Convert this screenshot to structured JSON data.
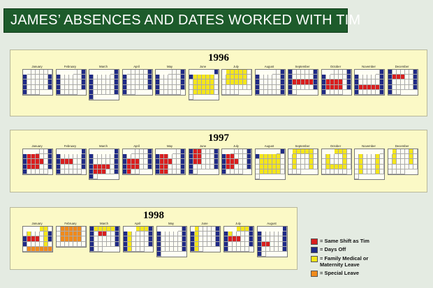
{
  "header": {
    "title": "JAMES’ ABSENCES AND DATES WORKED WITH TIM"
  },
  "colors": {
    "same_shift": "#d91e1e",
    "days_off": "#1f2a86",
    "fmla": "#f5e61a",
    "special": "#f08a1c",
    "work": "#fffff4"
  },
  "legend": [
    {
      "key": "same_shift",
      "label": "= Same Shift as Tim"
    },
    {
      "key": "days_off",
      "label": "= Days Off"
    },
    {
      "key": "fmla",
      "label": "= Family Medical or",
      "label2": "Maternity Leave"
    },
    {
      "key": "special",
      "label": "= Special Leave"
    }
  ],
  "chart_data": {
    "type": "table",
    "years": [
      {
        "year": "1996",
        "months": [
          {
            "name": "January",
            "start": 1,
            "days": 31,
            "off": [
              7,
              13,
              14,
              20,
              21,
              27,
              28
            ],
            "same": [],
            "fmla": [],
            "special": []
          },
          {
            "name": "February",
            "start": 4,
            "days": 29,
            "off": [
              3,
              4,
              10,
              11,
              17,
              18,
              24,
              25
            ],
            "same": [],
            "fmla": [],
            "special": []
          },
          {
            "name": "March",
            "start": 5,
            "days": 31,
            "off": [
              2,
              3,
              9,
              10,
              16,
              17,
              23,
              24,
              30,
              31
            ],
            "same": [],
            "fmla": [],
            "special": []
          },
          {
            "name": "April",
            "start": 1,
            "days": 30,
            "off": [
              6,
              7,
              13,
              14,
              20,
              21,
              27,
              28
            ],
            "same": [],
            "fmla": [],
            "special": []
          },
          {
            "name": "May",
            "start": 3,
            "days": 31,
            "off": [
              4,
              5,
              11,
              12,
              18,
              19,
              25,
              26
            ],
            "same": [],
            "fmla": [],
            "special": []
          },
          {
            "name": "June",
            "start": 6,
            "days": 30,
            "off": [
              1,
              2
            ],
            "same": [],
            "fmla": [
              3,
              4,
              5,
              6,
              7,
              10,
              11,
              12,
              13,
              14,
              17,
              18,
              19,
              20,
              21,
              24,
              25,
              26,
              27,
              28
            ],
            "special": []
          },
          {
            "name": "July",
            "start": 1,
            "days": 31,
            "off": [],
            "same": [],
            "fmla": [
              1,
              2,
              3,
              4,
              5,
              8,
              9,
              10,
              11,
              12,
              15,
              16,
              17,
              18,
              19
            ],
            "special": []
          },
          {
            "name": "August",
            "start": 4,
            "days": 31,
            "off": [
              3,
              4,
              10,
              11,
              17,
              18,
              24,
              25,
              31
            ],
            "same": [],
            "fmla": [],
            "special": []
          },
          {
            "name": "September",
            "start": 0,
            "days": 30,
            "off": [
              1,
              7,
              8,
              14,
              15,
              21,
              22,
              28,
              29
            ],
            "same": [
              16,
              17,
              18,
              19,
              20
            ],
            "fmla": [],
            "special": []
          },
          {
            "name": "October",
            "start": 2,
            "days": 31,
            "off": [
              5,
              6,
              12,
              13,
              19,
              20,
              26,
              27
            ],
            "same": [
              14,
              15,
              16,
              17,
              21,
              22,
              23,
              24
            ],
            "fmla": [],
            "special": []
          },
          {
            "name": "November",
            "start": 5,
            "days": 30,
            "off": [
              2,
              3,
              9,
              10,
              16,
              17,
              23,
              24,
              30
            ],
            "same": [
              18,
              19,
              20,
              21,
              22
            ],
            "fmla": [],
            "special": []
          },
          {
            "name": "December",
            "start": 0,
            "days": 31,
            "off": [
              1,
              7,
              8,
              14,
              15,
              21,
              22,
              28,
              29
            ],
            "same": [
              9,
              10,
              11
            ],
            "fmla": [],
            "special": []
          }
        ]
      },
      {
        "year": "1997",
        "months": [
          {
            "name": "January",
            "start": 3,
            "days": 31,
            "off": [
              4,
              5,
              11,
              12,
              18,
              19,
              25,
              26
            ],
            "same": [
              6,
              7,
              8,
              13,
              14,
              15,
              16,
              20,
              21,
              22
            ],
            "fmla": [],
            "special": []
          },
          {
            "name": "February",
            "start": 6,
            "days": 28,
            "off": [
              1,
              2,
              8,
              9,
              15,
              16,
              22,
              23
            ],
            "same": [
              10,
              11,
              12
            ],
            "fmla": [],
            "special": []
          },
          {
            "name": "March",
            "start": 6,
            "days": 31,
            "off": [
              1,
              2,
              8,
              9,
              15,
              16,
              22,
              23,
              29,
              30
            ],
            "same": [
              17,
              18,
              19,
              20,
              24,
              25,
              26
            ],
            "fmla": [],
            "special": []
          },
          {
            "name": "April",
            "start": 2,
            "days": 30,
            "off": [
              5,
              6,
              12,
              13,
              19,
              20,
              26,
              27
            ],
            "same": [
              14,
              15,
              16,
              21,
              22,
              23,
              28
            ],
            "fmla": [],
            "special": []
          },
          {
            "name": "May",
            "start": 4,
            "days": 31,
            "off": [
              3,
              4,
              10,
              11,
              17,
              18,
              24,
              25,
              31
            ],
            "same": [
              5,
              6,
              12,
              13,
              14,
              19,
              20,
              26,
              27
            ],
            "fmla": [],
            "special": []
          },
          {
            "name": "June",
            "start": 0,
            "days": 30,
            "off": [
              1,
              7,
              8,
              14,
              15,
              21,
              22,
              28,
              29
            ],
            "same": [
              2,
              3,
              9,
              10,
              16,
              17
            ],
            "fmla": [],
            "special": []
          },
          {
            "name": "July",
            "start": 2,
            "days": 31,
            "off": [
              5,
              6,
              12,
              13,
              19,
              20,
              26,
              27
            ],
            "same": [
              7,
              8,
              14,
              15,
              16,
              21,
              22
            ],
            "fmla": [],
            "special": []
          },
          {
            "name": "August",
            "start": 5,
            "days": 31,
            "off": [
              2,
              3
            ],
            "same": [],
            "fmla": [
              4,
              5,
              6,
              7,
              8,
              11,
              12,
              13,
              14,
              15,
              18,
              19,
              20,
              21,
              22,
              25,
              26,
              27,
              28,
              29
            ],
            "special": []
          },
          {
            "name": "September",
            "start": 1,
            "days": 30,
            "off": [],
            "same": [],
            "fmla": [
              1,
              2,
              3,
              4,
              5,
              8,
              12,
              15,
              19,
              22,
              26
            ],
            "special": []
          },
          {
            "name": "October",
            "start": 3,
            "days": 31,
            "off": [],
            "same": [],
            "fmla": [
              1,
              2,
              3,
              6,
              10,
              13,
              17,
              20,
              21,
              22,
              23,
              24
            ],
            "special": []
          },
          {
            "name": "November",
            "start": 6,
            "days": 30,
            "off": [],
            "same": [],
            "fmla": [
              3,
              7,
              10,
              14,
              17,
              21,
              24,
              28
            ],
            "special": []
          },
          {
            "name": "December",
            "start": 1,
            "days": 31,
            "off": [],
            "same": [],
            "fmla": [
              1,
              5,
              8,
              12,
              15,
              19
            ],
            "special": []
          }
        ]
      },
      {
        "year": "1998",
        "months": [
          {
            "name": "January",
            "start": 4,
            "days": 31,
            "off": [
              10,
              11,
              17,
              18
            ],
            "same": [
              12,
              13,
              14
            ],
            "fmla": [
              1,
              2,
              5,
              9,
              16,
              23,
              30
            ],
            "special": [
              26,
              27,
              28,
              29,
              30,
              31
            ]
          },
          {
            "name": "February",
            "start": 0,
            "days": 28,
            "off": [],
            "same": [],
            "fmla": [],
            "special": [
              2,
              3,
              4,
              5,
              6,
              9,
              10,
              11,
              12,
              13,
              16,
              17,
              18,
              19,
              20
            ]
          },
          {
            "name": "March",
            "start": 0,
            "days": 31,
            "off": [
              1,
              7,
              8,
              14,
              15,
              21,
              22,
              28,
              29
            ],
            "same": [
              10,
              11
            ],
            "fmla": [
              2,
              3,
              4,
              5,
              6
            ],
            "special": []
          },
          {
            "name": "April",
            "start": 3,
            "days": 30,
            "off": [
              4,
              5,
              11,
              12,
              18,
              19,
              25,
              26
            ],
            "same": [],
            "fmla": [
              1,
              2,
              3,
              6,
              13,
              20,
              27
            ],
            "special": []
          },
          {
            "name": "May",
            "start": 5,
            "days": 31,
            "off": [
              2,
              3,
              9,
              10,
              16,
              17,
              23,
              24,
              30,
              31
            ],
            "same": [],
            "fmla": [],
            "special": []
          },
          {
            "name": "June",
            "start": 1,
            "days": 30,
            "off": [
              6,
              7,
              13,
              14,
              20,
              21,
              27,
              28
            ],
            "same": [],
            "fmla": [
              1,
              8,
              15,
              22,
              29
            ],
            "special": []
          },
          {
            "name": "July",
            "start": 3,
            "days": 31,
            "off": [
              4,
              5,
              11,
              12,
              18,
              19,
              25,
              26
            ],
            "same": [
              13,
              14,
              15
            ],
            "fmla": [
              1,
              2,
              3,
              6
            ],
            "special": []
          },
          {
            "name": "August",
            "start": 6,
            "days": 31,
            "off": [
              1,
              2,
              8,
              9,
              15,
              16,
              22,
              23,
              29,
              30
            ],
            "same": [
              17,
              18
            ],
            "fmla": [],
            "special": []
          }
        ]
      }
    ]
  }
}
